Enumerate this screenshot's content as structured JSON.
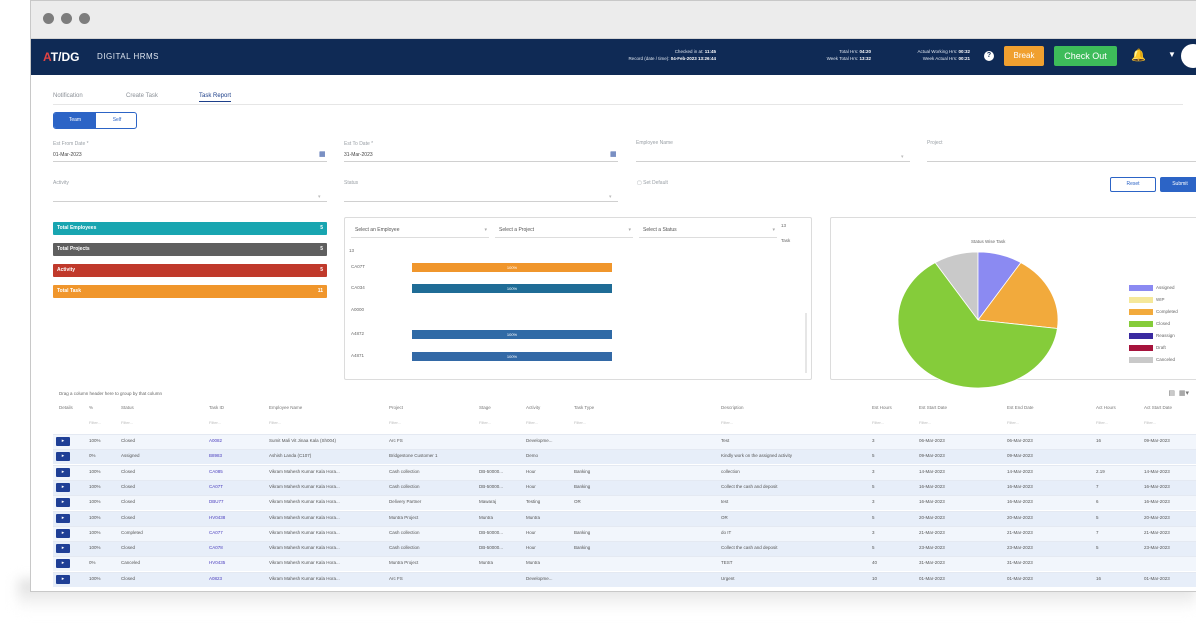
{
  "brand": {
    "logo_prefix": "A",
    "logo_rest": "T/DG",
    "app_name": "DIGITAL HRMS"
  },
  "header": {
    "checked_in_label": "Checked in at:",
    "checked_in_value": "11:45",
    "record_label": "Record (date / time):",
    "record_value": "04-Feb-2023 13:26:44",
    "total_hrs_label": "Total Hrs:",
    "total_hrs_value": "04:20",
    "week_total_label": "Week Total Hrs:",
    "week_total_value": "13:32",
    "actual_working_label": "Actual Working Hrs:",
    "actual_working_value": "00:32",
    "week_actual_label": "Week Actual Hrs:",
    "week_actual_value": "00:21",
    "break_label": "Break",
    "checkout_label": "Check Out"
  },
  "tabs": [
    {
      "label": "Notification"
    },
    {
      "label": "Create Task"
    },
    {
      "label": "Task Report"
    }
  ],
  "toggle": {
    "option1": "Team",
    "option2": "Self"
  },
  "filters": {
    "from_label": "Est From Date *",
    "from_value": "01-Mar-2023",
    "to_label": "Est To Date *",
    "to_value": "31-Mar-2023",
    "employee_label": "Employee Name",
    "project_label": "Project",
    "activity_label": "Activity",
    "status_label": "Status",
    "default_label": "Set Default",
    "reset_label": "Reset",
    "submit_label": "Submit"
  },
  "stats": [
    {
      "label": "Total Employees",
      "value": "5",
      "color": "#18a5b0"
    },
    {
      "label": "Total Projects",
      "value": "5",
      "color": "#5f5f5f"
    },
    {
      "label": "Activity",
      "value": "5",
      "color": "#c0392b"
    },
    {
      "label": "Total Task",
      "value": "11",
      "color": "#f0962c"
    }
  ],
  "bar_panel": {
    "select_employee": "Select an Employee",
    "select_project": "Select a Project",
    "select_status": "Select a Status",
    "side_label_1": "13",
    "side_label_2": "Task",
    "axis_top": "13",
    "rows": [
      {
        "label": "CA07T",
        "value": "100%",
        "color": "#f0962c"
      },
      {
        "label": "CA034",
        "value": "100%",
        "color": "#1f6c96"
      },
      {
        "label": "A0000",
        "value": "",
        "color": ""
      },
      {
        "label": "A4872",
        "value": "100%",
        "color": "#2f6aa6"
      },
      {
        "label": "A4871",
        "value": "100%",
        "color": "#3369a6"
      }
    ]
  },
  "pie": {
    "title": "Status Wise Task",
    "legend": [
      {
        "label": "Assigned",
        "color": "#8b8af2"
      },
      {
        "label": "WIP",
        "color": "#f5e89a"
      },
      {
        "label": "Completed",
        "color": "#f2aa3c"
      },
      {
        "label": "Closed",
        "color": "#85cc3a"
      },
      {
        "label": "Reassign",
        "color": "#3a2aa0"
      },
      {
        "label": "Draft",
        "color": "#a6133c"
      },
      {
        "label": "Canceled",
        "color": "#c9c9c9"
      }
    ],
    "slices": [
      {
        "name": "Assigned",
        "value": 9,
        "color": "#8b8af2"
      },
      {
        "name": "Completed",
        "value": 18,
        "color": "#f2aa3c"
      },
      {
        "name": "Closed",
        "value": 64,
        "color": "#85cc3a"
      },
      {
        "name": "Canceled",
        "value": 9,
        "color": "#c9c9c9"
      }
    ]
  },
  "grid": {
    "hint": "Drag a column header here to group by that column",
    "headers": [
      "Details",
      "%",
      "Status",
      "Task ID",
      "Employee Name",
      "Project",
      "Stage",
      "Activity",
      "Task Type",
      "Description",
      "Est Hours",
      "Est Start Date",
      "Est End Date",
      "Act Hours",
      "Act Start Date"
    ],
    "filter_placeholder": "Filter...",
    "rows": [
      [
        "100%",
        "Closed",
        "A0082",
        "Sumit Mali Vit Jinaa Kala (Sh004)",
        "Arc FS",
        "",
        "Developme...",
        "",
        "Test",
        "3",
        "06-Mar-2023",
        "06-Mar-2023",
        "16",
        "09-Mar-2023"
      ],
      [
        "0%",
        "Assigned",
        "B8983",
        "Ashish Landa (C107)",
        "Bridgestone Customer 1",
        "",
        "Demo",
        "",
        "Kindly work on the assigned activity",
        "5",
        "09-Mar-2023",
        "09-Mar-2023",
        "",
        ""
      ],
      [
        "100%",
        "Closed",
        "CA085",
        "Vikram Mahesh Kumar Kala Hora...",
        "Cash collection",
        "DB-50000...",
        "Hour",
        "Banking",
        "collection",
        "3",
        "14-Mar-2023",
        "14-Mar-2023",
        "2.19",
        "14-Mar-2023"
      ],
      [
        "100%",
        "Closed",
        "CA07T",
        "Vikram Mahesh Kumar Kala Hora...",
        "Cash collection",
        "DB-50000...",
        "Hour",
        "Banking",
        "Collect the cash and deposit",
        "5",
        "16-Mar-2023",
        "16-Mar-2023",
        "7",
        "16-Mar-2023"
      ],
      [
        "100%",
        "Closed",
        "DBU77",
        "Vikram Mahesh Kumar Kala Hora...",
        "Delivery Partner",
        "Mawaraj",
        "Testing",
        "OR",
        "test",
        "3",
        "16-Mar-2023",
        "16-Mar-2023",
        "6",
        "16-Mar-2023"
      ],
      [
        "100%",
        "Closed",
        "HV0438",
        "Vikram Mahesh Kumar Kala Hora...",
        "Muntra Project",
        "Muntra",
        "Muntra",
        "",
        "OR",
        "5",
        "20-Mar-2023",
        "20-Mar-2023",
        "5",
        "20-Mar-2023"
      ],
      [
        "100%",
        "Completed",
        "CA077",
        "Vikram Mahesh Kumar Kala Hora...",
        "Cash collection",
        "DB-50000...",
        "Hour",
        "Banking",
        "do IT",
        "3",
        "21-Mar-2023",
        "21-Mar-2023",
        "7",
        "21-Mar-2023"
      ],
      [
        "100%",
        "Closed",
        "CA078",
        "Vikram Mahesh Kumar Kala Hora...",
        "Cash collection",
        "DB-50000...",
        "Hour",
        "Banking",
        "Collect the cash and deposit",
        "5",
        "23-Mar-2023",
        "23-Mar-2023",
        "5",
        "23-Mar-2023"
      ],
      [
        "0%",
        "Canceled",
        "HV0435",
        "Vikram Mahesh Kumar Kala Hora...",
        "Muntra Project",
        "Muntra",
        "Muntra",
        "",
        "TEST",
        "40",
        "31-Mar-2023",
        "31-Mar-2023",
        "",
        ""
      ],
      [
        "100%",
        "Closed",
        "A0823",
        "Vikram Mahesh Kumar Kala Hora...",
        "Arc FS",
        "",
        "Developme...",
        "",
        "Urgent",
        "10",
        "01-Mar-2023",
        "01-Mar-2023",
        "16",
        "01-Mar-2023"
      ]
    ]
  }
}
